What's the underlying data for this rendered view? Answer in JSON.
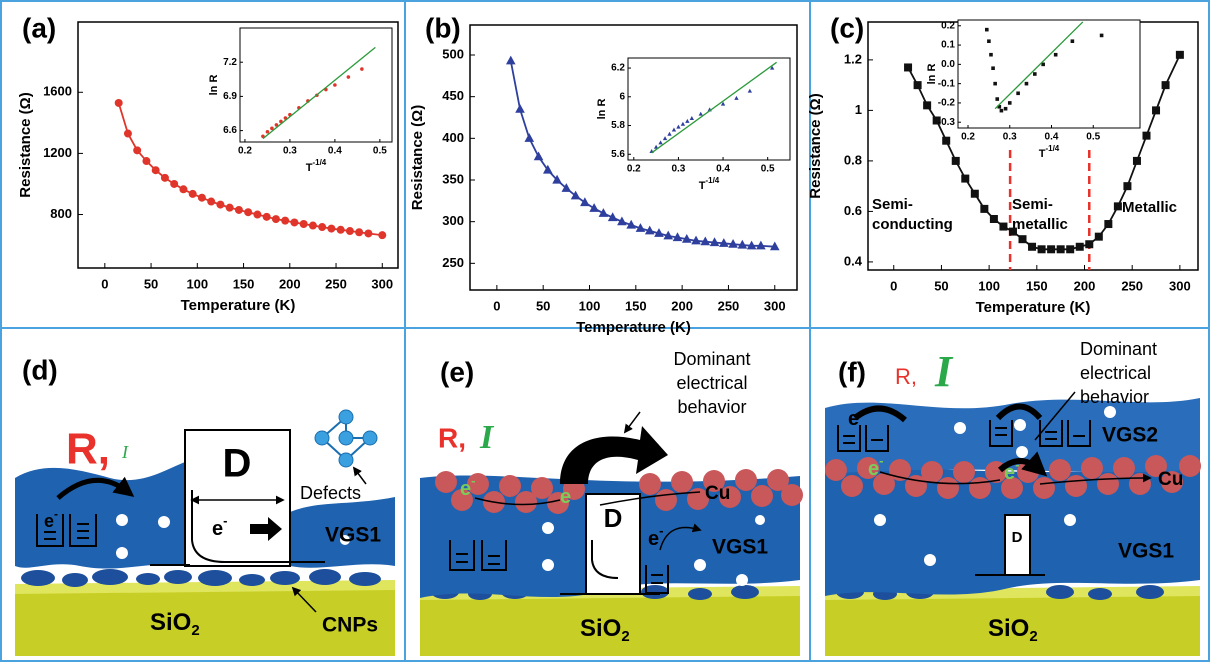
{
  "chart_data": [
    {
      "type": "line",
      "panel": "(a)",
      "xlabel": "Temperature (K)",
      "ylabel": "Resistance (Ω)",
      "xlim": [
        -29,
        317
      ],
      "ylim": [
        450,
        2060
      ],
      "xticks": [
        0,
        50,
        100,
        150,
        200,
        250,
        300
      ],
      "yticks": [
        800,
        1200,
        1600
      ],
      "x": [
        15,
        25,
        35,
        45,
        55,
        65,
        75,
        85,
        95,
        105,
        115,
        125,
        135,
        145,
        155,
        165,
        175,
        185,
        195,
        205,
        215,
        225,
        235,
        245,
        255,
        265,
        275,
        285,
        300
      ],
      "series": [
        {
          "color": "#e0352b",
          "marker": "circle",
          "values": [
            1530,
            1330,
            1220,
            1150,
            1090,
            1040,
            1000,
            965,
            935,
            910,
            885,
            865,
            845,
            830,
            815,
            800,
            785,
            770,
            760,
            748,
            738,
            728,
            718,
            708,
            700,
            692,
            684,
            676,
            665
          ]
        }
      ]
    },
    {
      "type": "line",
      "panel": "(b)",
      "xlabel": "Temperature (K)",
      "ylabel": "Resistance (Ω)",
      "xlim": [
        -29,
        324
      ],
      "ylim": [
        218,
        536
      ],
      "xticks": [
        0,
        50,
        100,
        150,
        200,
        250,
        300
      ],
      "yticks": [
        250,
        300,
        350,
        400,
        450,
        500
      ],
      "x": [
        15,
        25,
        35,
        45,
        55,
        65,
        75,
        85,
        95,
        105,
        115,
        125,
        135,
        145,
        155,
        165,
        175,
        185,
        195,
        205,
        215,
        225,
        235,
        245,
        255,
        265,
        275,
        285,
        300
      ],
      "series": [
        {
          "color": "#2e3f9e",
          "marker": "triangle",
          "values": [
            493,
            435,
            400,
            378,
            362,
            350,
            340,
            331,
            323,
            316,
            310,
            305,
            300,
            296,
            292,
            289,
            286,
            283,
            281,
            279,
            277,
            276,
            275,
            274,
            273,
            272,
            271,
            271,
            270
          ]
        }
      ]
    },
    {
      "type": "line",
      "panel": "(c)",
      "xlabel": "Temperature (K)",
      "ylabel": "Resistance (Ω)",
      "xlim": [
        -27,
        319
      ],
      "ylim": [
        0.368,
        1.35
      ],
      "xticks": [
        0,
        50,
        100,
        150,
        200,
        250,
        300
      ],
      "yticks": [
        0.4,
        0.6,
        0.8,
        1.0,
        1.2
      ],
      "x": [
        15,
        25,
        35,
        45,
        55,
        65,
        75,
        85,
        95,
        105,
        115,
        125,
        135,
        145,
        155,
        165,
        175,
        185,
        195,
        205,
        215,
        225,
        235,
        245,
        255,
        265,
        275,
        285,
        300
      ],
      "series": [
        {
          "color": "#111111",
          "marker": "square",
          "values": [
            1.17,
            1.1,
            1.02,
            0.96,
            0.88,
            0.8,
            0.73,
            0.67,
            0.61,
            0.57,
            0.54,
            0.52,
            0.49,
            0.46,
            0.45,
            0.45,
            0.45,
            0.45,
            0.46,
            0.47,
            0.5,
            0.55,
            0.62,
            0.7,
            0.8,
            0.9,
            1.0,
            1.1,
            1.22
          ]
        }
      ],
      "vlines": [
        122,
        205
      ],
      "vline_color": "#e8322b",
      "annotations": [
        [
          "Semi-",
          "conducting"
        ],
        [
          "Semi-",
          "metallic"
        ],
        [
          "Metallic"
        ]
      ]
    },
    {
      "type": "scatter",
      "xlabel": {
        "base": "T",
        "sup": "-1/4"
      },
      "ylabel": "ln R",
      "xlim": [
        0.189,
        0.527
      ],
      "ylim": [
        6.5,
        7.5
      ],
      "xticks": [
        0.2,
        0.3,
        0.4,
        0.5
      ],
      "yticks": [
        6.6,
        6.9,
        7.2
      ],
      "series": [
        {
          "color": "#e0352b",
          "marker": "circle",
          "style": "markers",
          "x": [
            0.24,
            0.25,
            0.26,
            0.27,
            0.28,
            0.29,
            0.3,
            0.32,
            0.34,
            0.36,
            0.38,
            0.4,
            0.43,
            0.46
          ],
          "values": [
            6.55,
            6.59,
            6.62,
            6.65,
            6.68,
            6.71,
            6.74,
            6.8,
            6.86,
            6.91,
            6.96,
            7.0,
            7.07,
            7.14
          ]
        },
        {
          "color": "#2a9a3a",
          "style": "line",
          "x": [
            0.24,
            0.49
          ],
          "values": [
            6.53,
            7.33
          ]
        }
      ]
    },
    {
      "type": "scatter",
      "xlabel": {
        "base": "T",
        "sup": "-1/4"
      },
      "ylabel": "ln R",
      "xlim": [
        0.187,
        0.55
      ],
      "ylim": [
        5.56,
        6.27
      ],
      "xticks": [
        0.2,
        0.3,
        0.4,
        0.5
      ],
      "yticks": [
        5.6,
        5.8,
        6.0,
        6.2
      ],
      "series": [
        {
          "color": "#2e3f9e",
          "marker": "triangle",
          "style": "markers",
          "x": [
            0.24,
            0.25,
            0.26,
            0.27,
            0.28,
            0.29,
            0.3,
            0.31,
            0.32,
            0.33,
            0.35,
            0.37,
            0.4,
            0.43,
            0.46,
            0.51
          ],
          "values": [
            5.62,
            5.65,
            5.68,
            5.71,
            5.74,
            5.77,
            5.79,
            5.81,
            5.83,
            5.85,
            5.88,
            5.91,
            5.95,
            5.99,
            6.04,
            6.2
          ]
        },
        {
          "color": "#2a9a3a",
          "style": "line",
          "x": [
            0.24,
            0.52
          ],
          "values": [
            5.61,
            6.24
          ]
        }
      ]
    },
    {
      "type": "scatter",
      "xlabel": {
        "base": "T",
        "sup": "-1/4"
      },
      "ylabel": "ln R",
      "xlim": [
        0.176,
        0.612
      ],
      "ylim": [
        -0.33,
        0.23
      ],
      "xticks": [
        0.2,
        0.3,
        0.4,
        0.5
      ],
      "yticks": [
        -0.3,
        -0.2,
        -0.1,
        {
          "value": 0,
          "label": "0.0"
        },
        0.1,
        0.2
      ],
      "series": [
        {
          "color": "#111111",
          "marker": "square",
          "style": "markers",
          "x": [
            0.245,
            0.25,
            0.255,
            0.26,
            0.265,
            0.27,
            0.275,
            0.28,
            0.29,
            0.3,
            0.32,
            0.34,
            0.36,
            0.38,
            0.41,
            0.45,
            0.52
          ],
          "values": [
            0.18,
            0.12,
            0.05,
            -0.02,
            -0.1,
            -0.18,
            -0.22,
            -0.24,
            -0.23,
            -0.2,
            -0.15,
            -0.1,
            -0.05,
            0.0,
            0.05,
            0.12,
            0.15
          ]
        },
        {
          "color": "#2a9a3a",
          "style": "line",
          "x": [
            0.265,
            0.475
          ],
          "values": [
            -0.23,
            0.22
          ]
        }
      ]
    }
  ],
  "diagrams": [
    {
      "label": "(d)",
      "r": "R,",
      "i": "I",
      "box": "D",
      "electrons": [
        {
          "base": "e",
          "sup": "-"
        },
        {
          "base": "e",
          "sup": "-"
        }
      ],
      "defects": "Defects",
      "layer": "VGS1",
      "substrate": {
        "base": "SiO",
        "sub": "2"
      },
      "particles": "CNPs"
    },
    {
      "label": "(e)",
      "r": "R,",
      "i": "I",
      "note": [
        "Dominant",
        "electrical",
        "behavior"
      ],
      "box": "D",
      "electrons": [
        {
          "base": "e",
          "sup": "-"
        },
        {
          "base": "e"
        },
        {
          "base": "e",
          "sup": "-"
        }
      ],
      "metal": "Cu",
      "layer": "VGS1",
      "substrate": {
        "base": "SiO",
        "sub": "2"
      }
    },
    {
      "label": "(f)",
      "r": "R,",
      "i": "I",
      "note": [
        "Dominant",
        "electrical",
        "behavior"
      ],
      "box": "D",
      "electrons": [
        {
          "base": "e",
          "sup": "-"
        },
        {
          "base": "e",
          "sup": "-"
        },
        {
          "base": "e",
          "sup": "-"
        }
      ],
      "metal": "Cu",
      "layers": [
        "VGS2",
        "VGS1"
      ],
      "substrate": {
        "base": "SiO",
        "sub": "2"
      }
    }
  ]
}
